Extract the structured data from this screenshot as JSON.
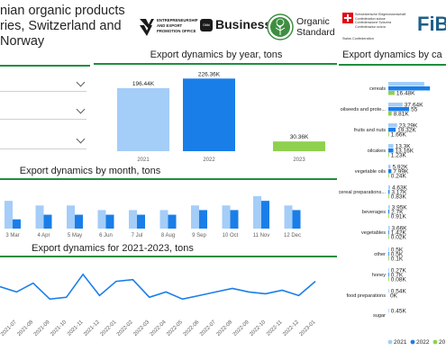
{
  "header": {
    "title_lines": [
      "nian organic products",
      "ries, Switzerland and",
      "Norway"
    ]
  },
  "logos": {
    "epo_text": [
      "ENTREPRENEURSHIP",
      "AND EXPORT",
      "PROMOTION OFFICE"
    ],
    "business_badge": "Gtibi",
    "business_text": "Business",
    "organic_text": [
      "Organic",
      "Standard"
    ],
    "swiss_text": [
      "Schweizerische Eidgenossenschaft",
      "Confédération suisse",
      "Confederazione Svizzera",
      "Confederaziun svizra"
    ],
    "swiss_sub": "Swiss Confederation",
    "fibl_text": "FiB"
  },
  "colors": {
    "y2021": "#a4cdf8",
    "y2022": "#1a7ee8",
    "y2023": "#8fd14f",
    "accent": "#1e8e3e"
  },
  "filters": {
    "count": 3
  },
  "chart_data": [
    {
      "type": "bar",
      "title": "Export dynamics by year, tons",
      "categories": [
        "2021",
        "2022",
        "2023"
      ],
      "values": [
        196440,
        226360,
        30360
      ],
      "labels": [
        "196.44K",
        "226.36K",
        "30.36K"
      ],
      "ylim": [
        0,
        230000
      ]
    },
    {
      "type": "bar",
      "title": "Export dynamics by month, tons",
      "categories": [
        "3 Mar",
        "4 Apr",
        "5 May",
        "6 Jun",
        "7 Jul",
        "8 Aug",
        "9 Sep",
        "10 Oct",
        "11 Nov",
        "12 Dec"
      ],
      "series": [
        {
          "name": "2021",
          "values": [
            6,
            5,
            5,
            4,
            4,
            4,
            5,
            5,
            7,
            5
          ]
        },
        {
          "name": "2022",
          "values": [
            2,
            3,
            3,
            3,
            3,
            3,
            4,
            4,
            6,
            4
          ]
        }
      ],
      "ylim": [
        0,
        7
      ]
    },
    {
      "type": "line",
      "title": "Export dynamics for 2021-2023, tons",
      "x": [
        "2021-06",
        "2021-07",
        "2021-08",
        "2021-09",
        "2021-10",
        "2021-11",
        "2021-12",
        "2022-01",
        "2022-02",
        "2022-03",
        "2022-04",
        "2022-05",
        "2022-06",
        "2022-07",
        "2022-08",
        "2022-09",
        "2022-10",
        "2022-11",
        "2022-12",
        "2023-01"
      ],
      "y": [
        15,
        12,
        17,
        8,
        9,
        22,
        10,
        18,
        19,
        9,
        12,
        8,
        10,
        12,
        14,
        12,
        11,
        13,
        10,
        18
      ],
      "ylim": [
        0,
        28
      ]
    },
    {
      "type": "bar",
      "title": "Export dynamics by ca",
      "orientation": "horizontal",
      "categories": [
        "cereals",
        "oilseeds and prote...",
        "fruits and nuts",
        "oilcakes",
        "vegetable oils",
        "cereal preparations...",
        "beverages",
        "vegetables",
        "other",
        "honey",
        "food preparations",
        "sugar"
      ],
      "series": [
        {
          "name": "2021",
          "values": [
            95,
            37.64,
            23.29,
            13.3,
            5.92,
            4.63,
            3.95,
            3.66,
            0.5,
            0.27,
            0.54,
            0.45
          ]
        },
        {
          "name": "2022",
          "values": [
            110,
            55,
            19.32,
            13.16,
            7.99,
            3.17,
            2.7,
            1.42,
            0.5,
            0.7,
            0,
            0
          ]
        },
        {
          "name": "2023",
          "values": [
            16.48,
            8.81,
            1.66,
            1.23,
            0.24,
            0.83,
            0.91,
            0.02,
            0.1,
            0.08,
            0,
            0
          ]
        }
      ],
      "labels": [
        [
          "",
          "",
          "16.48K"
        ],
        [
          "37.64K",
          "55",
          "8.81K"
        ],
        [
          "23.29K",
          "19.32K",
          "1.66K"
        ],
        [
          "13.3K",
          "13.16K",
          "1.23K"
        ],
        [
          "5.92K",
          "7.99K",
          "0.24K"
        ],
        [
          "4.63K",
          "3.17K",
          "0.83K"
        ],
        [
          "3.95K",
          "2.7K",
          "0.91K"
        ],
        [
          "3.66K",
          "1.42K",
          "0.02K"
        ],
        [
          "0.5K",
          "0.5K",
          "0.1K"
        ],
        [
          "0.27K",
          "0.7K",
          "0.08K"
        ],
        [
          "0.54K",
          "0K",
          ""
        ],
        [
          "0.45K",
          "",
          ""
        ]
      ],
      "legend": [
        "2021",
        "2022",
        "20"
      ]
    }
  ]
}
